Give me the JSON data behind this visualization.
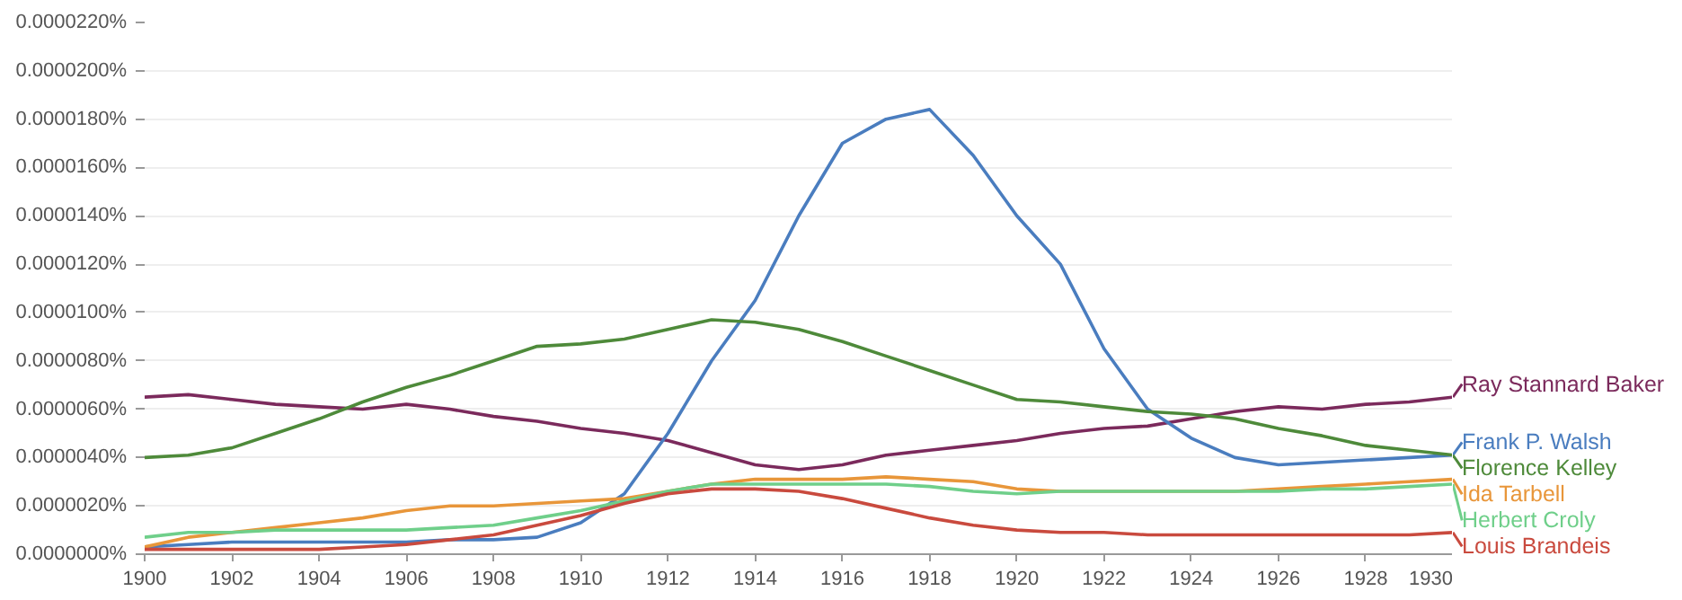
{
  "chart_data": {
    "type": "line",
    "x": [
      1900,
      1901,
      1902,
      1903,
      1904,
      1905,
      1906,
      1907,
      1908,
      1909,
      1910,
      1911,
      1912,
      1913,
      1914,
      1915,
      1916,
      1917,
      1918,
      1919,
      1920,
      1921,
      1922,
      1923,
      1924,
      1925,
      1926,
      1927,
      1928,
      1929,
      1930
    ],
    "series": [
      {
        "name": "Ray Stannard Baker",
        "color": "#7b2a5c",
        "values": [
          6.5e-06,
          6.6e-06,
          6.4e-06,
          6.2e-06,
          6.1e-06,
          6e-06,
          6.2e-06,
          6e-06,
          5.7e-06,
          5.5e-06,
          5.2e-06,
          5e-06,
          4.7e-06,
          4.2e-06,
          3.7e-06,
          3.5e-06,
          3.7e-06,
          4.1e-06,
          4.3e-06,
          4.5e-06,
          4.7e-06,
          5e-06,
          5.2e-06,
          5.3e-06,
          5.6e-06,
          5.9e-06,
          6.1e-06,
          6e-06,
          6.2e-06,
          6.3e-06,
          6.5e-06
        ]
      },
      {
        "name": "Frank P. Walsh",
        "color": "#4a7dbf",
        "values": [
          3e-07,
          4e-07,
          5e-07,
          5e-07,
          5e-07,
          5e-07,
          5e-07,
          6e-07,
          6e-07,
          7e-07,
          1.3e-06,
          2.5e-06,
          5e-06,
          8e-06,
          1.05e-05,
          1.4e-05,
          1.7e-05,
          1.8e-05,
          1.84e-05,
          1.65e-05,
          1.4e-05,
          1.2e-05,
          8.5e-06,
          6e-06,
          4.8e-06,
          4e-06,
          3.7e-06,
          3.8e-06,
          3.9e-06,
          4e-06,
          4.1e-06
        ]
      },
      {
        "name": "Florence Kelley",
        "color": "#4e8a3a",
        "values": [
          4e-06,
          4.1e-06,
          4.4e-06,
          5e-06,
          5.6e-06,
          6.3e-06,
          6.9e-06,
          7.4e-06,
          8e-06,
          8.6e-06,
          8.7e-06,
          8.9e-06,
          9.3e-06,
          9.7e-06,
          9.6e-06,
          9.3e-06,
          8.8e-06,
          8.2e-06,
          7.6e-06,
          7e-06,
          6.4e-06,
          6.3e-06,
          6.1e-06,
          5.9e-06,
          5.8e-06,
          5.6e-06,
          5.2e-06,
          4.9e-06,
          4.5e-06,
          4.3e-06,
          4.1e-06
        ]
      },
      {
        "name": "Ida Tarbell",
        "color": "#e8963a",
        "values": [
          3e-07,
          7e-07,
          9e-07,
          1.1e-06,
          1.3e-06,
          1.5e-06,
          1.8e-06,
          2e-06,
          2e-06,
          2.1e-06,
          2.2e-06,
          2.3e-06,
          2.6e-06,
          2.9e-06,
          3.1e-06,
          3.1e-06,
          3.1e-06,
          3.2e-06,
          3.1e-06,
          3e-06,
          2.7e-06,
          2.6e-06,
          2.6e-06,
          2.6e-06,
          2.6e-06,
          2.6e-06,
          2.7e-06,
          2.8e-06,
          2.9e-06,
          3e-06,
          3.1e-06
        ]
      },
      {
        "name": "Herbert Croly",
        "color": "#6fcf8a",
        "values": [
          7e-07,
          9e-07,
          9e-07,
          1e-06,
          1e-06,
          1e-06,
          1e-06,
          1.1e-06,
          1.2e-06,
          1.5e-06,
          1.8e-06,
          2.2e-06,
          2.6e-06,
          2.9e-06,
          2.9e-06,
          2.9e-06,
          2.9e-06,
          2.9e-06,
          2.8e-06,
          2.6e-06,
          2.5e-06,
          2.6e-06,
          2.6e-06,
          2.6e-06,
          2.6e-06,
          2.6e-06,
          2.6e-06,
          2.7e-06,
          2.7e-06,
          2.8e-06,
          2.9e-06
        ]
      },
      {
        "name": "Louis Brandeis",
        "color": "#c94a3e",
        "values": [
          2e-07,
          2e-07,
          2e-07,
          2e-07,
          2e-07,
          3e-07,
          4e-07,
          6e-07,
          8e-07,
          1.2e-06,
          1.6e-06,
          2.1e-06,
          2.5e-06,
          2.7e-06,
          2.7e-06,
          2.6e-06,
          2.3e-06,
          1.9e-06,
          1.5e-06,
          1.2e-06,
          1e-06,
          9e-07,
          9e-07,
          8e-07,
          8e-07,
          8e-07,
          8e-07,
          8e-07,
          8e-07,
          8e-07,
          9e-07
        ]
      }
    ],
    "xlim": [
      1900,
      1930
    ],
    "xticks": [
      1900,
      1902,
      1904,
      1906,
      1908,
      1910,
      1912,
      1914,
      1916,
      1918,
      1920,
      1922,
      1924,
      1926,
      1928,
      1930
    ],
    "ylim": [
      0,
      2.2e-05
    ],
    "yticks": [
      {
        "value": 0,
        "label": "0.0000000%"
      },
      {
        "value": 2e-06,
        "label": "0.0000020%"
      },
      {
        "value": 4e-06,
        "label": "0.0000040%"
      },
      {
        "value": 6e-06,
        "label": "0.0000060%"
      },
      {
        "value": 8e-06,
        "label": "0.0000080%"
      },
      {
        "value": 1e-05,
        "label": "0.0000100%"
      },
      {
        "value": 1.2e-05,
        "label": "0.0000120%"
      },
      {
        "value": 1.4e-05,
        "label": "0.0000140%"
      },
      {
        "value": 1.6e-05,
        "label": "0.0000160%"
      },
      {
        "value": 1.8e-05,
        "label": "0.0000180%"
      },
      {
        "value": 2e-05,
        "label": "0.0000200%"
      },
      {
        "value": 2.2e-05,
        "label": "0.0000220%"
      }
    ],
    "grid": "y",
    "legend": "right",
    "line_style": "solid",
    "marker": "none"
  }
}
